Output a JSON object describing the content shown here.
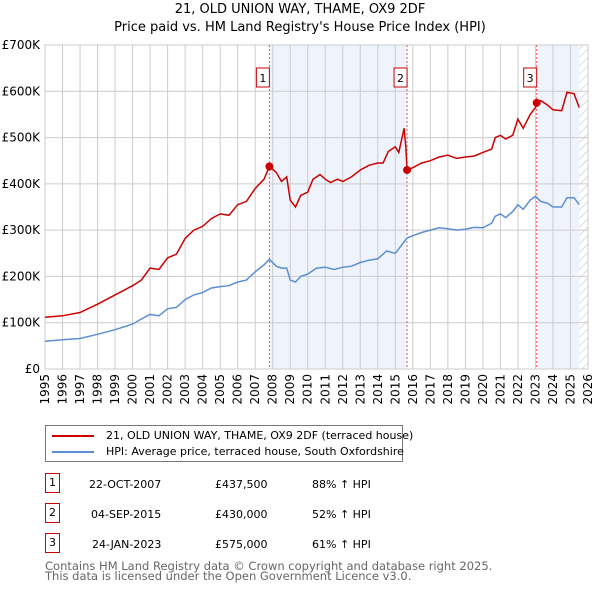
{
  "title_line1": "21, OLD UNION WAY, THAME, OX9 2DF",
  "title_line2": "Price paid vs. HM Land Registry's House Price Index (HPI)",
  "colors": {
    "property": "#cc0000",
    "hpi": "#5b8fd4",
    "shade": "#eef3fc",
    "marker_border": "#cc0000"
  },
  "chart_data": {
    "type": "line",
    "ylabel": "",
    "xlabel": "",
    "ylim": [
      0,
      700000
    ],
    "xlim": [
      1995,
      2026
    ],
    "y_ticks": [
      {
        "v": 0,
        "label": "£0"
      },
      {
        "v": 100000,
        "label": "£100K"
      },
      {
        "v": 200000,
        "label": "£200K"
      },
      {
        "v": 300000,
        "label": "£300K"
      },
      {
        "v": 400000,
        "label": "£400K"
      },
      {
        "v": 500000,
        "label": "£500K"
      },
      {
        "v": 600000,
        "label": "£600K"
      },
      {
        "v": 700000,
        "label": "£700K"
      }
    ],
    "x_ticks": [
      "1995",
      "1996",
      "1997",
      "1998",
      "1999",
      "2000",
      "2001",
      "2002",
      "2003",
      "2004",
      "2005",
      "2006",
      "2007",
      "2008",
      "2009",
      "2010",
      "2011",
      "2012",
      "2013",
      "2014",
      "2015",
      "2016",
      "2017",
      "2018",
      "2019",
      "2020",
      "2021",
      "2022",
      "2023",
      "2024",
      "2025",
      "2026"
    ],
    "grid": true,
    "shaded_ranges": [
      [
        2007.81,
        2015.67
      ],
      [
        2023.07,
        2025.5
      ]
    ],
    "hatched_from": 2025.5,
    "series": [
      {
        "name": "21, OLD UNION WAY, THAME, OX9 2DF (terraced house)",
        "color": "#cc0000",
        "x": [
          1995,
          1996,
          1997,
          1998,
          1999,
          2000,
          2000.5,
          2001,
          2001.5,
          2002,
          2002.5,
          2003,
          2003.5,
          2004,
          2004.5,
          2005,
          2005.5,
          2006,
          2006.5,
          2007,
          2007.5,
          2007.81,
          2008.2,
          2008.5,
          2008.8,
          2009,
          2009.3,
          2009.6,
          2010,
          2010.3,
          2010.7,
          2011,
          2011.3,
          2011.7,
          2012,
          2012.5,
          2013,
          2013.5,
          2014,
          2014.3,
          2014.6,
          2015,
          2015.2,
          2015.5,
          2015.6,
          2015.67,
          2016,
          2016.5,
          2017,
          2017.5,
          2018,
          2018.5,
          2019,
          2019.5,
          2020,
          2020.5,
          2020.7,
          2021,
          2021.3,
          2021.7,
          2022,
          2022.3,
          2022.7,
          2023,
          2023.07,
          2023.3,
          2023.7,
          2024,
          2024.5,
          2024.8,
          2025.2,
          2025.5
        ],
        "y": [
          112000,
          115000,
          122000,
          140000,
          160000,
          180000,
          192000,
          218000,
          215000,
          240000,
          248000,
          282000,
          300000,
          308000,
          325000,
          335000,
          332000,
          355000,
          362000,
          390000,
          410000,
          437500,
          425000,
          405000,
          415000,
          365000,
          350000,
          375000,
          382000,
          410000,
          420000,
          410000,
          403000,
          410000,
          405000,
          415000,
          430000,
          440000,
          445000,
          445000,
          470000,
          480000,
          468000,
          520000,
          480000,
          430000,
          435000,
          445000,
          450000,
          458000,
          462000,
          455000,
          458000,
          460000,
          468000,
          475000,
          500000,
          505000,
          497000,
          505000,
          540000,
          520000,
          550000,
          565000,
          575000,
          580000,
          570000,
          560000,
          558000,
          598000,
          595000,
          565000
        ]
      },
      {
        "name": "HPI: Average price, terraced house, South Oxfordshire",
        "color": "#5b8fd4",
        "x": [
          1995,
          1996,
          1997,
          1998,
          1999,
          2000,
          2000.5,
          2001,
          2001.5,
          2002,
          2002.5,
          2003,
          2003.5,
          2004,
          2004.5,
          2005,
          2005.5,
          2006,
          2006.5,
          2007,
          2007.5,
          2007.81,
          2008.2,
          2008.5,
          2008.8,
          2009,
          2009.3,
          2009.6,
          2010,
          2010.5,
          2011,
          2011.5,
          2012,
          2012.5,
          2013,
          2013.5,
          2014,
          2014.5,
          2015,
          2015.67,
          2016,
          2016.5,
          2017,
          2017.5,
          2018,
          2018.5,
          2019,
          2019.5,
          2020,
          2020.5,
          2020.7,
          2021,
          2021.3,
          2021.7,
          2022,
          2022.3,
          2022.7,
          2023,
          2023.3,
          2023.7,
          2024,
          2024.5,
          2024.8,
          2025.2,
          2025.5
        ],
        "y": [
          60000,
          63000,
          66000,
          75000,
          85000,
          97000,
          108000,
          118000,
          115000,
          130000,
          133000,
          150000,
          160000,
          165000,
          175000,
          178000,
          180000,
          188000,
          192000,
          210000,
          225000,
          237000,
          222000,
          218000,
          218000,
          192000,
          188000,
          200000,
          205000,
          218000,
          220000,
          215000,
          220000,
          222000,
          230000,
          235000,
          238000,
          255000,
          250000,
          283000,
          288000,
          295000,
          300000,
          305000,
          303000,
          300000,
          302000,
          306000,
          305000,
          315000,
          330000,
          335000,
          327000,
          340000,
          355000,
          345000,
          365000,
          373000,
          362000,
          358000,
          350000,
          350000,
          370000,
          370000,
          355000
        ]
      }
    ],
    "sales": [
      {
        "label": "1",
        "x": 2007.81,
        "y": 437500
      },
      {
        "label": "2",
        "x": 2015.67,
        "y": 430000
      },
      {
        "label": "3",
        "x": 2023.07,
        "y": 575000
      }
    ]
  },
  "legend": {
    "property": "21, OLD UNION WAY, THAME, OX9 2DF (terraced house)",
    "hpi": "HPI: Average price, terraced house, South Oxfordshire"
  },
  "transactions": [
    {
      "num": "1",
      "date": "22-OCT-2007",
      "price": "£437,500",
      "hpi": "88% ↑ HPI"
    },
    {
      "num": "2",
      "date": "04-SEP-2015",
      "price": "£430,000",
      "hpi": "52% ↑ HPI"
    },
    {
      "num": "3",
      "date": "24-JAN-2023",
      "price": "£575,000",
      "hpi": "61% ↑ HPI"
    }
  ],
  "footer": {
    "line1": "Contains HM Land Registry data © Crown copyright and database right 2025.",
    "line2": "This data is licensed under the Open Government Licence v3.0."
  }
}
